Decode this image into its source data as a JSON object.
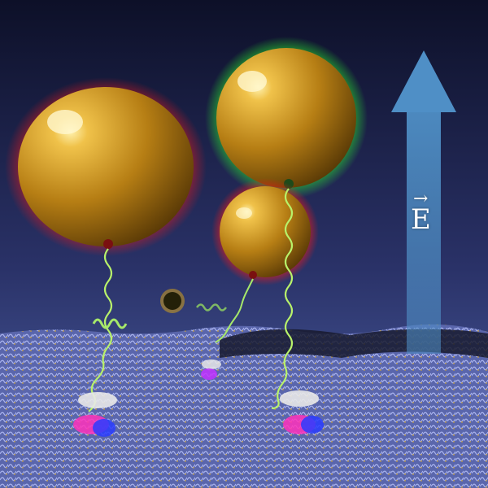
{
  "scene": {
    "description_kind": "illustration",
    "colors": {
      "sky_top": "#121530",
      "sky_bottom": "#4a5a9a",
      "gold": "#d9a21e",
      "glow_red": "#ff2020",
      "glow_green": "#28ff28",
      "membrane": "#8a95d8",
      "arrow": "#5f9fd0",
      "tether": "#b8f26a"
    },
    "field_arrow": {
      "symbol": "E",
      "vector_mark": "→"
    }
  }
}
